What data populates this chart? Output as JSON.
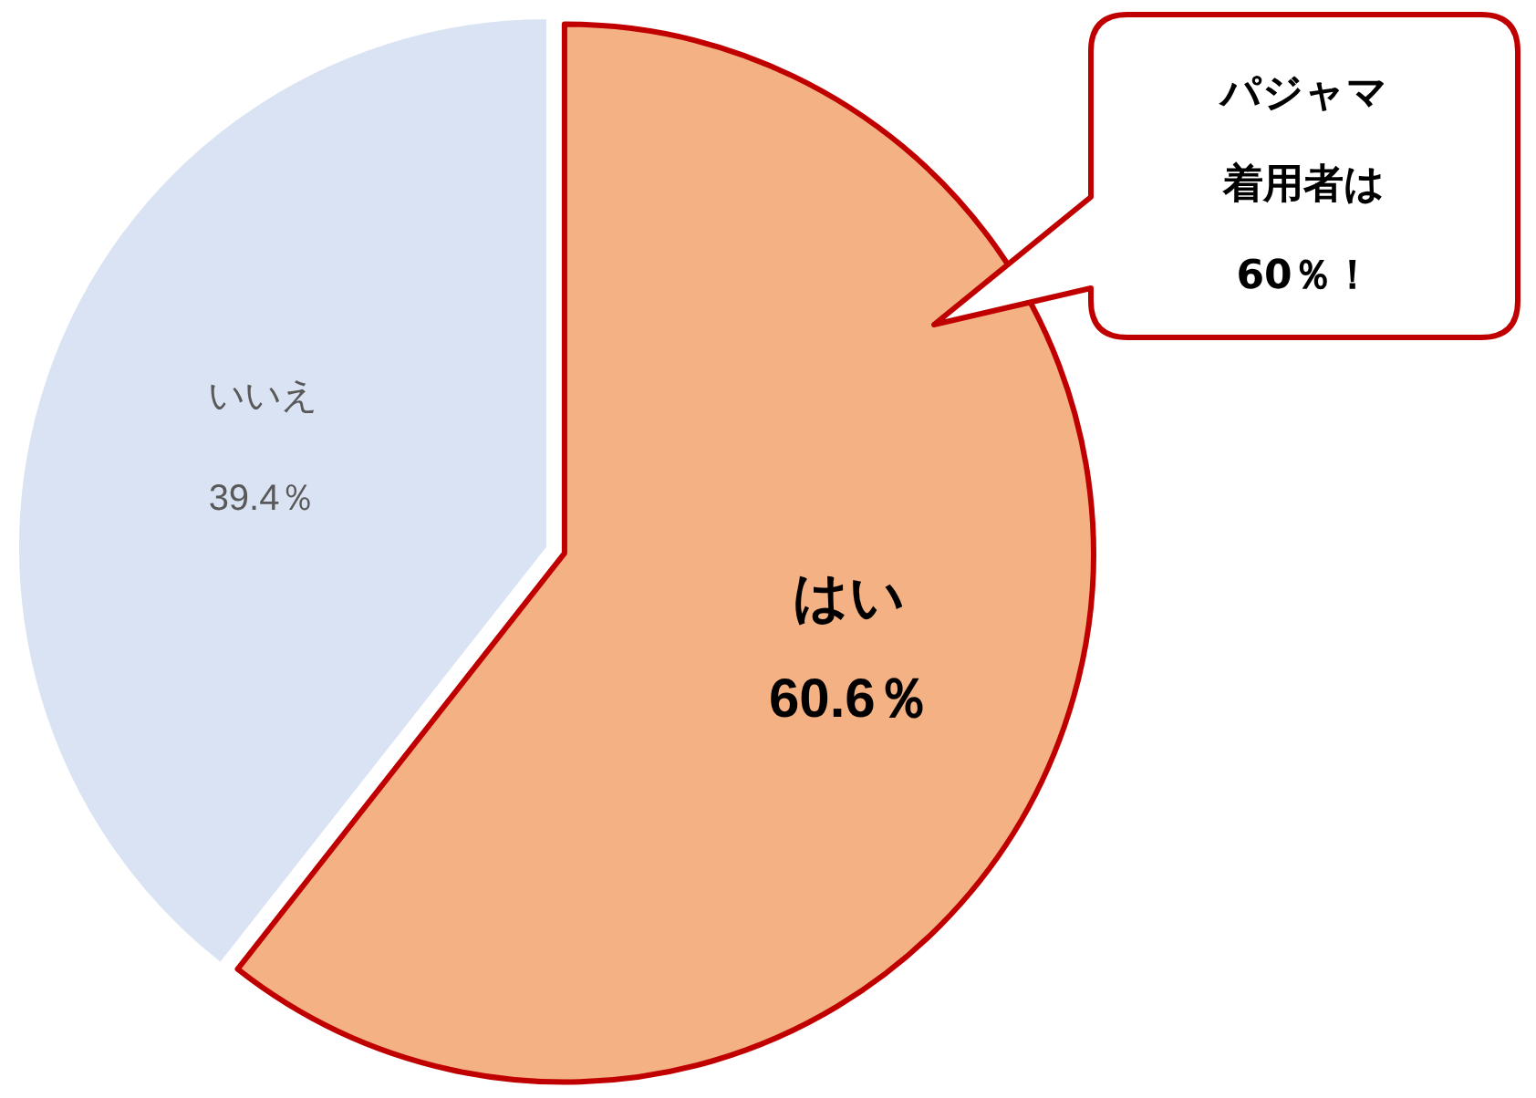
{
  "chart_data": {
    "type": "pie",
    "categories": [
      "はい",
      "いいえ"
    ],
    "values": [
      60.6,
      39.4
    ],
    "colors": [
      "#f4b183",
      "#dae3f3"
    ],
    "value_labels": [
      "60.6％",
      "39.4％"
    ],
    "annotations": [
      "パジャマ着用者は60％！"
    ]
  }
}
